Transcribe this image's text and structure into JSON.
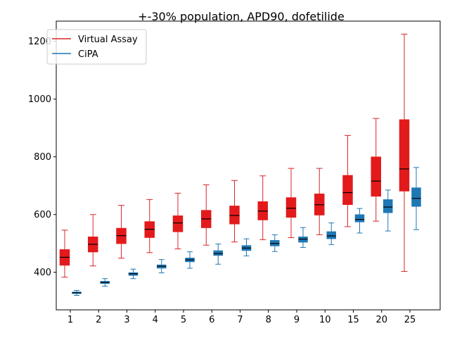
{
  "chart_data": {
    "type": "box",
    "title": "+-30% population, APD90, dofetilide",
    "xlabel": "",
    "ylabel": "",
    "categories": [
      "1",
      "2",
      "3",
      "4",
      "5",
      "6",
      "7",
      "8",
      "9",
      "10",
      "15",
      "20",
      "25"
    ],
    "ylim": [
      270,
      1270
    ],
    "yticks": [
      400,
      600,
      800,
      1000,
      1200
    ],
    "legend_position": "top-left",
    "grid": false,
    "series": [
      {
        "name": "Virtual Assay",
        "color": "#d62728",
        "box_color": "#e31a1c",
        "boxes": [
          {
            "min": 383,
            "q1": 424,
            "median": 452,
            "q3": 479,
            "max": 546
          },
          {
            "min": 422,
            "q1": 470,
            "median": 497,
            "q3": 523,
            "max": 600
          },
          {
            "min": 449,
            "q1": 499,
            "median": 527,
            "q3": 553,
            "max": 632
          },
          {
            "min": 468,
            "q1": 520,
            "median": 549,
            "q3": 576,
            "max": 652
          },
          {
            "min": 481,
            "q1": 540,
            "median": 571,
            "q3": 596,
            "max": 674
          },
          {
            "min": 494,
            "q1": 554,
            "median": 585,
            "q3": 615,
            "max": 703
          },
          {
            "min": 505,
            "q1": 567,
            "median": 597,
            "q3": 630,
            "max": 718
          },
          {
            "min": 513,
            "q1": 581,
            "median": 612,
            "q3": 645,
            "max": 734
          },
          {
            "min": 520,
            "q1": 590,
            "median": 622,
            "q3": 659,
            "max": 760
          },
          {
            "min": 530,
            "q1": 598,
            "median": 634,
            "q3": 672,
            "max": 760
          },
          {
            "min": 558,
            "q1": 634,
            "median": 676,
            "q3": 736,
            "max": 874
          },
          {
            "min": 577,
            "q1": 663,
            "median": 716,
            "q3": 800,
            "max": 933
          },
          {
            "min": 403,
            "q1": 681,
            "median": 758,
            "q3": 929,
            "max": 1225
          }
        ]
      },
      {
        "name": "CiPA",
        "color": "#1f77b4",
        "box_color": "#1f77b4",
        "boxes": [
          {
            "min": 320,
            "q1": 326,
            "median": 329,
            "q3": 332,
            "max": 337
          },
          {
            "min": 352,
            "q1": 361,
            "median": 365,
            "q3": 369,
            "max": 378
          },
          {
            "min": 378,
            "q1": 389,
            "median": 395,
            "q3": 399,
            "max": 411
          },
          {
            "min": 398,
            "q1": 414,
            "median": 421,
            "q3": 426,
            "max": 444
          },
          {
            "min": 414,
            "q1": 436,
            "median": 443,
            "q3": 450,
            "max": 471
          },
          {
            "min": 428,
            "q1": 458,
            "median": 465,
            "q3": 475,
            "max": 498
          },
          {
            "min": 457,
            "q1": 475,
            "median": 484,
            "q3": 493,
            "max": 516
          },
          {
            "min": 472,
            "q1": 491,
            "median": 500,
            "q3": 511,
            "max": 530
          },
          {
            "min": 486,
            "q1": 504,
            "median": 515,
            "q3": 523,
            "max": 555
          },
          {
            "min": 496,
            "q1": 516,
            "median": 526,
            "q3": 541,
            "max": 571
          },
          {
            "min": 536,
            "q1": 574,
            "median": 583,
            "q3": 600,
            "max": 621
          },
          {
            "min": 543,
            "q1": 606,
            "median": 626,
            "q3": 652,
            "max": 685
          },
          {
            "min": 548,
            "q1": 628,
            "median": 656,
            "q3": 693,
            "max": 763
          }
        ]
      }
    ]
  }
}
